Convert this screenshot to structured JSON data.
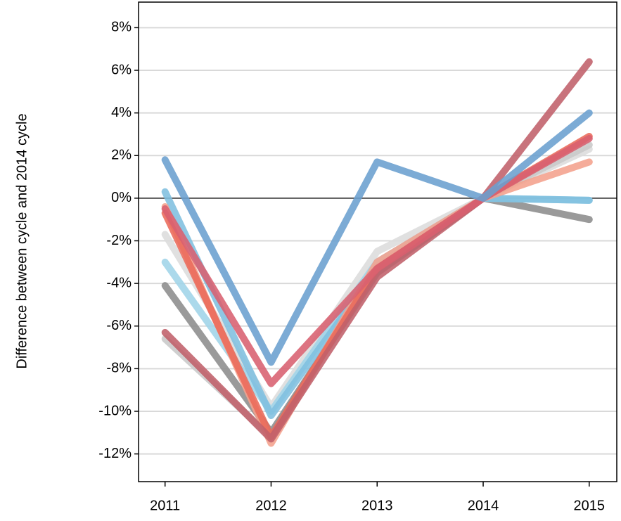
{
  "chart_data": {
    "type": "line",
    "y_label": "Difference between cycle and 2014 cycle",
    "x": [
      2011,
      2012,
      2013,
      2014,
      2015
    ],
    "xlim": [
      2010.75,
      2015.26
    ],
    "xticks": [
      2011,
      2012,
      2013,
      2014,
      2015
    ],
    "ylim": [
      -13.3,
      9.2
    ],
    "yticks": [
      {
        "value": -12,
        "label": "-12%"
      },
      {
        "value": -10,
        "label": "-10%"
      },
      {
        "value": -8,
        "label": "-8%"
      },
      {
        "value": -6,
        "label": "-6%"
      },
      {
        "value": -4,
        "label": "-4%"
      },
      {
        "value": -2,
        "label": "-2%"
      },
      {
        "value": 0,
        "label": "0%"
      },
      {
        "value": 2,
        "label": "2%"
      },
      {
        "value": 4,
        "label": "4%"
      },
      {
        "value": 6,
        "label": "6%"
      },
      {
        "value": 8,
        "label": "8%"
      }
    ],
    "grid": true,
    "series": [
      {
        "color": "#dcdcdc",
        "values": [
          -1.7,
          -9.8,
          -2.5,
          0,
          2.3
        ]
      },
      {
        "color": "#c8c8c8",
        "values": [
          -6.6,
          -11.2,
          -3.2,
          0,
          2.5
        ]
      },
      {
        "color": "#8c8c8c",
        "values": [
          -4.1,
          -11.0,
          -3.5,
          0,
          -1.0
        ]
      },
      {
        "color": "#9fd4e8",
        "values": [
          -3.0,
          -10.0,
          -3.0,
          0,
          -0.1
        ]
      },
      {
        "color": "#7fbfdf",
        "values": [
          0.3,
          -10.2,
          -3.3,
          0,
          -0.1
        ]
      },
      {
        "color": "#f4a08c",
        "values": [
          -0.4,
          -11.5,
          -3.0,
          0,
          1.7
        ]
      },
      {
        "color": "#ea6a5a",
        "values": [
          -0.7,
          -11.2,
          -3.3,
          0,
          2.9
        ]
      },
      {
        "color": "#c0606a",
        "values": [
          -6.3,
          -11.3,
          -3.7,
          0,
          6.4
        ]
      },
      {
        "color": "#d86070",
        "values": [
          -0.5,
          -8.7,
          -3.3,
          0,
          2.8
        ]
      },
      {
        "color": "#6a9fcf",
        "values": [
          1.8,
          -7.7,
          1.7,
          0,
          4.0
        ]
      }
    ]
  }
}
